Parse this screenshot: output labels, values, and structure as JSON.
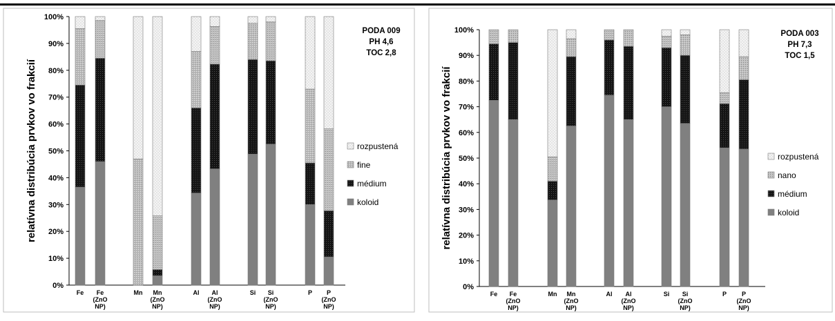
{
  "colors": {
    "koloid": "#808080",
    "medium": "#141414",
    "fine": "#bdbdbd",
    "rozpustena": "#f4f4f4"
  },
  "chart_data": [
    {
      "type": "bar",
      "stacked": true,
      "title": "",
      "ylabel": "relatívna distribúcia prvkov vo frakcií",
      "ylim": [
        0,
        100
      ],
      "yticks": [
        "0%",
        "10%",
        "20%",
        "30%",
        "40%",
        "50%",
        "60%",
        "70%",
        "80%",
        "90%",
        "100%"
      ],
      "info": [
        "PODA 009",
        "PH 4,6",
        "TOC 2,8"
      ],
      "legend_position": "right",
      "categories": [
        [
          "Fe"
        ],
        [
          "Fe",
          "(ZnO",
          "NP)"
        ],
        [
          "Mn"
        ],
        [
          "Mn",
          "(ZnO",
          "NP)"
        ],
        [
          "Al"
        ],
        [
          "Al",
          "(ZnO",
          "NP)"
        ],
        [
          "Si"
        ],
        [
          "Si",
          "(ZnO",
          "NP)"
        ],
        [
          "P"
        ],
        [
          "P",
          "(ZnO",
          "NP)"
        ]
      ],
      "series": [
        {
          "name": "koloid",
          "values": [
            36.5,
            46,
            0,
            3.5,
            34.3,
            43.3,
            48.8,
            52.5,
            30,
            10.5
          ]
        },
        {
          "name": "médium",
          "values": [
            38,
            38.5,
            0,
            2.3,
            31.7,
            39,
            35.2,
            31,
            15.5,
            17.2
          ]
        },
        {
          "name": "fine",
          "values": [
            21,
            14,
            47,
            20,
            21,
            14,
            13.5,
            14.5,
            27.5,
            30.5
          ]
        },
        {
          "name": "rozpustená",
          "values": [
            4.5,
            1.5,
            53,
            74.2,
            13,
            3.7,
            2.5,
            2,
            27,
            41.8
          ]
        }
      ]
    },
    {
      "type": "bar",
      "stacked": true,
      "title": "",
      "ylabel": "relatívna distribúcia prvkov vo frakcií",
      "ylim": [
        0,
        100
      ],
      "yticks": [
        "0%",
        "10%",
        "20%",
        "30%",
        "40%",
        "50%",
        "60%",
        "70%",
        "80%",
        "90%",
        "100%"
      ],
      "info": [
        "PODA 003",
        "PH 7,3",
        "TOC 1,5"
      ],
      "legend_position": "right",
      "categories": [
        [
          "Fe"
        ],
        [
          "Fe",
          "(ZnO",
          "NP)"
        ],
        [
          "Mn"
        ],
        [
          "Mn",
          "(ZnO",
          "NP)"
        ],
        [
          "Al"
        ],
        [
          "Al",
          "(ZnO",
          "NP)"
        ],
        [
          "Si"
        ],
        [
          "Si",
          "(ZnO",
          "NP)"
        ],
        [
          "P"
        ],
        [
          "P",
          "(ZnO",
          "NP)"
        ]
      ],
      "series": [
        {
          "name": "koloid",
          "values": [
            72.5,
            65,
            33.7,
            62.5,
            74.5,
            65,
            70,
            63.5,
            54,
            53.5
          ]
        },
        {
          "name": "médium",
          "values": [
            22,
            30,
            7.3,
            27,
            21.5,
            28.5,
            23,
            26.5,
            17.2,
            27
          ]
        },
        {
          "name": "nano",
          "values": [
            5.5,
            5,
            9.5,
            7,
            4,
            6.5,
            4.5,
            8,
            4.3,
            9
          ]
        },
        {
          "name": "rozpustená",
          "values": [
            0,
            0,
            49.5,
            3.5,
            0,
            0,
            2.5,
            2,
            24.5,
            10.5
          ]
        }
      ]
    }
  ]
}
